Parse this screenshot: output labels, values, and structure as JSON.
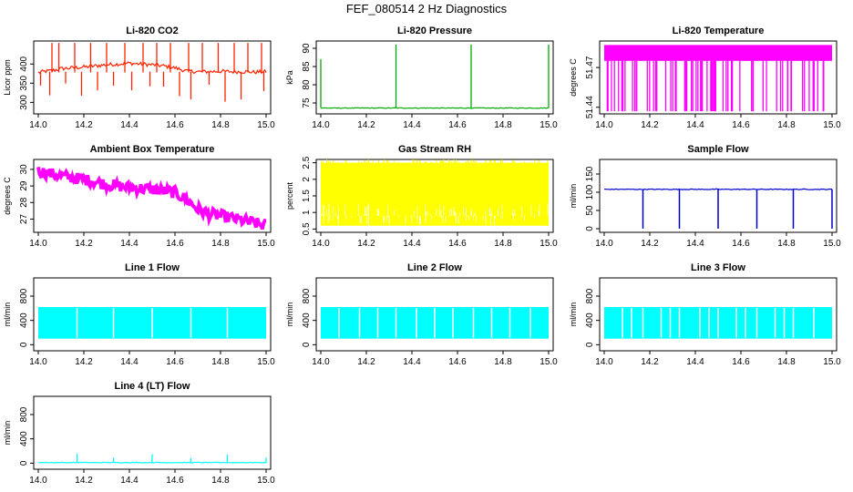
{
  "page": {
    "title": "FEF_080514  2 Hz Diagnostics"
  },
  "chart_data": [
    {
      "type": "line",
      "title": "Li-820 CO2",
      "xlabel": "",
      "ylabel": "Licor ppm",
      "color": "#ff2200",
      "xlim": [
        13.98,
        15.02
      ],
      "ylim": [
        270,
        460
      ],
      "xticks": [
        "14.0",
        "14.2",
        "14.4",
        "14.6",
        "14.8",
        "15.0"
      ],
      "yticks": [
        300,
        350,
        400
      ],
      "x": [
        14.0,
        14.02,
        14.05,
        14.08,
        14.1,
        14.15,
        14.2,
        14.25,
        14.3,
        14.35,
        14.4,
        14.45,
        14.5,
        14.55,
        14.6,
        14.65,
        14.7,
        14.75,
        14.8,
        14.85,
        14.9,
        14.95,
        15.0
      ],
      "y": [
        378,
        380,
        382,
        385,
        388,
        390,
        392,
        395,
        398,
        400,
        402,
        400,
        398,
        395,
        390,
        382,
        380,
        380,
        381,
        380,
        380,
        379,
        380
      ],
      "spikes_up": [
        14.06,
        14.09,
        14.16,
        14.23,
        14.3,
        14.38,
        14.46,
        14.52,
        14.58,
        14.66,
        14.72,
        14.79,
        14.86,
        14.92,
        14.98
      ],
      "spikes_down": [
        14.01,
        14.05,
        14.12,
        14.19,
        14.26,
        14.33,
        14.41,
        14.49,
        14.55,
        14.62,
        14.67,
        14.75,
        14.82,
        14.89,
        14.99
      ]
    },
    {
      "type": "line",
      "title": "Li-820 Pressure",
      "xlabel": "",
      "ylabel": "kPa",
      "color": "#00aa00",
      "xlim": [
        13.98,
        15.02
      ],
      "ylim": [
        72,
        92
      ],
      "xticks": [
        "14.0",
        "14.2",
        "14.4",
        "14.6",
        "14.8",
        "15.0"
      ],
      "yticks": [
        75,
        80,
        85,
        90
      ],
      "x": [
        14.0,
        15.0
      ],
      "y": [
        73.6,
        73.6
      ],
      "spikes_up": [
        14.0,
        14.33,
        14.66,
        15.0
      ],
      "spike_top": [
        87,
        91,
        91,
        91
      ]
    },
    {
      "type": "line",
      "title": "Li-820 Temperature",
      "xlabel": "",
      "ylabel": "degrees C",
      "color": "#ff00ff",
      "xlim": [
        13.98,
        15.02
      ],
      "ylim": [
        51.435,
        51.49
      ],
      "xticks": [
        "14.0",
        "14.2",
        "14.4",
        "14.6",
        "14.8",
        "15.0"
      ],
      "yticks": [
        "51.44",
        "51.47"
      ],
      "band": [
        51.475,
        51.487
      ],
      "drop_to": 51.437
    },
    {
      "type": "line",
      "title": "Ambient Box Temperature",
      "xlabel": "",
      "ylabel": "degrees C",
      "color": "#ff00ff",
      "xlim": [
        13.98,
        15.02
      ],
      "ylim": [
        26.2,
        30.6
      ],
      "xticks": [
        "14.0",
        "14.2",
        "14.4",
        "14.6",
        "14.8",
        "15.0"
      ],
      "yticks": [
        27,
        28,
        29,
        30
      ],
      "x": [
        14.0,
        14.1,
        14.2,
        14.3,
        14.4,
        14.5,
        14.6,
        14.65,
        14.7,
        14.75,
        14.8,
        14.9,
        15.0
      ],
      "y": [
        29.9,
        29.6,
        29.4,
        29.1,
        28.9,
        28.8,
        28.6,
        28.2,
        27.6,
        27.3,
        27.2,
        26.9,
        26.6
      ]
    },
    {
      "type": "line",
      "title": "Gas Stream RH",
      "xlabel": "",
      "ylabel": "percent",
      "color": "#ffff00",
      "xlim": [
        13.98,
        15.02
      ],
      "ylim": [
        0.4,
        2.6
      ],
      "xticks": [
        "14.0",
        "14.2",
        "14.4",
        "14.6",
        "14.8",
        "15.0"
      ],
      "yticks": [
        0.5,
        1.0,
        1.5,
        2.0,
        2.5
      ],
      "band": [
        0.6,
        2.5
      ]
    },
    {
      "type": "line",
      "title": "Sample Flow",
      "xlabel": "",
      "ylabel": "ml/min",
      "color": "#0000cc",
      "xlim": [
        13.98,
        15.02
      ],
      "ylim": [
        -10,
        190
      ],
      "xticks": [
        "14.0",
        "14.2",
        "14.4",
        "14.6",
        "14.8",
        "15.0"
      ],
      "yticks": [
        0,
        50,
        100,
        150
      ],
      "x": [
        14.0,
        15.0
      ],
      "y": [
        108,
        108
      ],
      "drops": [
        14.17,
        14.33,
        14.5,
        14.67,
        14.83,
        15.0
      ]
    },
    {
      "type": "line",
      "title": "Line 1 Flow",
      "xlabel": "",
      "ylabel": "ml/min",
      "color": "#00ffff",
      "xlim": [
        13.98,
        15.02
      ],
      "ylim": [
        -100,
        1100
      ],
      "xticks": [
        "14.0",
        "14.2",
        "14.4",
        "14.6",
        "14.8",
        "15.0"
      ],
      "yticks": [
        0,
        400,
        800
      ],
      "band": [
        100,
        620
      ],
      "gaps": [
        14.17,
        14.33,
        14.5,
        14.67,
        14.83
      ]
    },
    {
      "type": "line",
      "title": "Line 2 Flow",
      "xlabel": "",
      "ylabel": "ml/min",
      "color": "#00ffff",
      "xlim": [
        13.98,
        15.02
      ],
      "ylim": [
        -100,
        1100
      ],
      "xticks": [
        "14.0",
        "14.2",
        "14.4",
        "14.6",
        "14.8",
        "15.0"
      ],
      "yticks": [
        0,
        400,
        800
      ],
      "band": [
        100,
        620
      ],
      "gaps": [
        14.08,
        14.17,
        14.25,
        14.33,
        14.42,
        14.5,
        14.58,
        14.67,
        14.75,
        14.83,
        14.92
      ]
    },
    {
      "type": "line",
      "title": "Line 3 Flow",
      "xlabel": "",
      "ylabel": "ml/min",
      "color": "#00ffff",
      "xlim": [
        13.98,
        15.02
      ],
      "ylim": [
        -100,
        1100
      ],
      "xticks": [
        "14.0",
        "14.2",
        "14.4",
        "14.6",
        "14.8",
        "15.0"
      ],
      "yticks": [
        0,
        400,
        800
      ],
      "band": [
        100,
        620
      ],
      "gaps": [
        14.08,
        14.12,
        14.17,
        14.25,
        14.29,
        14.33,
        14.42,
        14.46,
        14.5,
        14.58,
        14.62,
        14.67,
        14.75,
        14.79,
        14.83,
        14.92
      ]
    },
    {
      "type": "line",
      "title": "Line 4 (LT) Flow",
      "xlabel": "",
      "ylabel": "ml/min",
      "color": "#00ffff",
      "xlim": [
        13.98,
        15.02
      ],
      "ylim": [
        -100,
        1100
      ],
      "xticks": [
        "14.0",
        "14.2",
        "14.4",
        "14.6",
        "14.8",
        "15.0"
      ],
      "yticks": [
        0,
        400,
        800
      ],
      "x": [
        14.0,
        15.0
      ],
      "y": [
        10,
        10
      ],
      "spikes_up": [
        14.17,
        14.33,
        14.5,
        14.67,
        14.83,
        15.0
      ],
      "spike_top": [
        160,
        90,
        150,
        80,
        140,
        90
      ]
    }
  ]
}
